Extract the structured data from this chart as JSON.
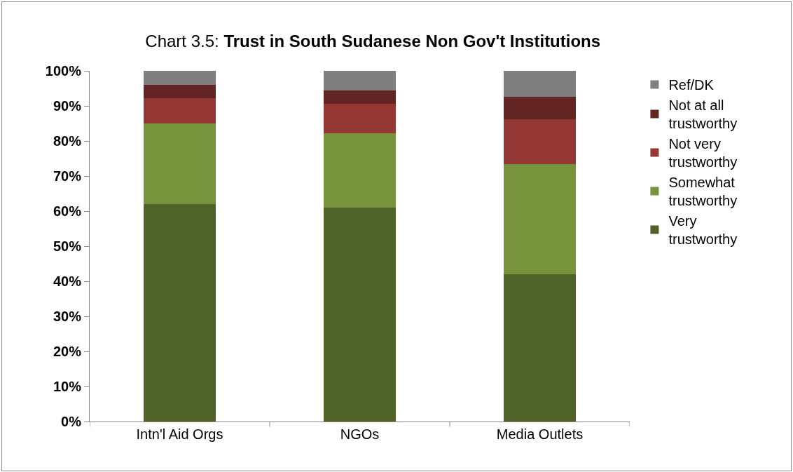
{
  "chart_data": {
    "type": "bar",
    "stacked": true,
    "title": "Chart 3.5: Trust in South Sudanese Non Gov't Institutions",
    "categories": [
      "Intn'l Aid Orgs",
      "NGOs",
      "Media Outlets"
    ],
    "series": [
      {
        "name": "Very trustworthy",
        "color": "#4f6228",
        "values": [
          62,
          61,
          42
        ]
      },
      {
        "name": "Somewhat trustworthy",
        "color": "#77933c",
        "values": [
          23,
          21.2,
          31.4
        ]
      },
      {
        "name": "Not very trustworthy",
        "color": "#953735",
        "values": [
          7.3,
          8.5,
          12.8
        ]
      },
      {
        "name": "Not at all trustworthy",
        "color": "#632523",
        "values": [
          3.8,
          3.8,
          6.5
        ]
      },
      {
        "name": "Ref/DK",
        "color": "#7f7f7f",
        "values": [
          3.9,
          5.5,
          7.3
        ]
      }
    ],
    "ylim": [
      0,
      100
    ],
    "yticks": [
      {
        "value": 0,
        "label": "0%"
      },
      {
        "value": 10,
        "label": "10%"
      },
      {
        "value": 20,
        "label": "20%"
      },
      {
        "value": 30,
        "label": "30%"
      },
      {
        "value": 40,
        "label": "40%"
      },
      {
        "value": 50,
        "label": "50%"
      },
      {
        "value": 60,
        "label": "60%"
      },
      {
        "value": 70,
        "label": "70%"
      },
      {
        "value": 80,
        "label": "80%"
      },
      {
        "value": 90,
        "label": "90%"
      },
      {
        "value": 100,
        "label": "100%"
      }
    ],
    "grid": false,
    "legend": "right"
  }
}
